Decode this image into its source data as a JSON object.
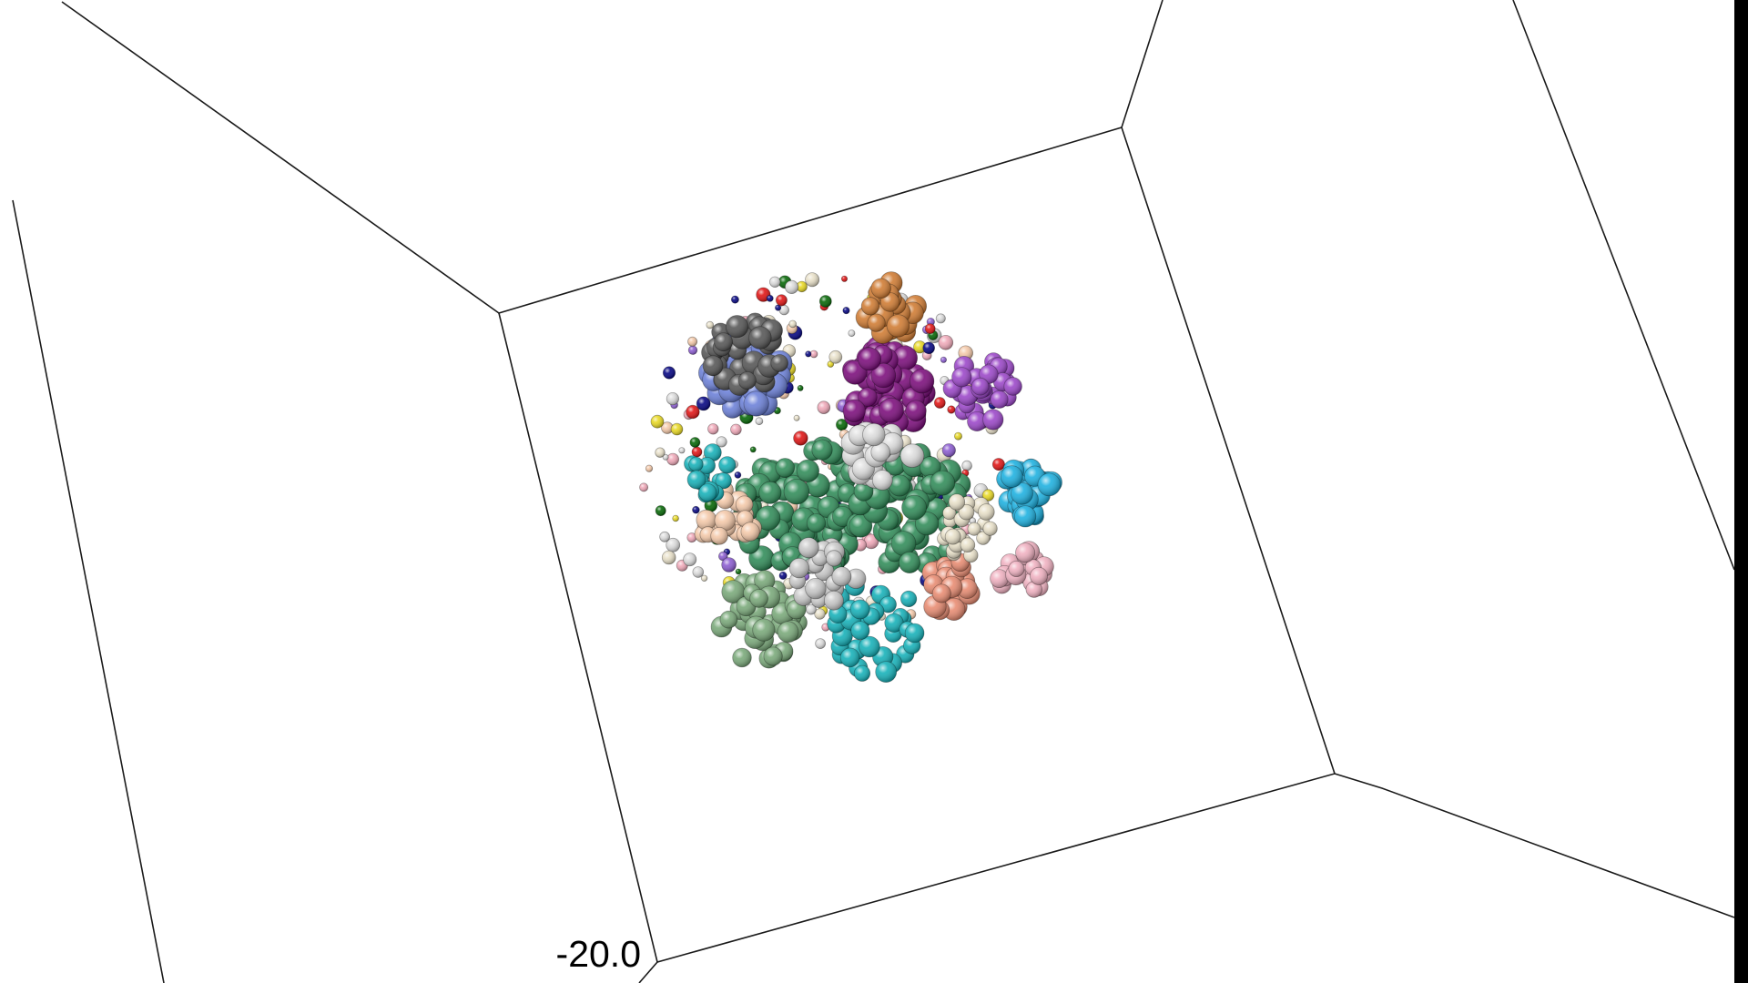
{
  "scene": {
    "background_color": "#ffffff",
    "frame_color": "#000000",
    "line_color": "#1a1a1a",
    "axis_label": "-20.0",
    "palette": [
      "#7a0a7a",
      "#2e8b57",
      "#1ab0e0",
      "#6a7fd8",
      "#545454",
      "#d07a30",
      "#9a44c8",
      "#dcdcdc",
      "#f4c8a8",
      "#e88a70",
      "#f0b0c0",
      "#12b0b8",
      "#78a878",
      "#e8e0c8",
      "#c8c8c8",
      "#000080",
      "#e01010",
      "#e8d820",
      "#f0a8b8",
      "#8a5ad0",
      "#006400"
    ]
  }
}
